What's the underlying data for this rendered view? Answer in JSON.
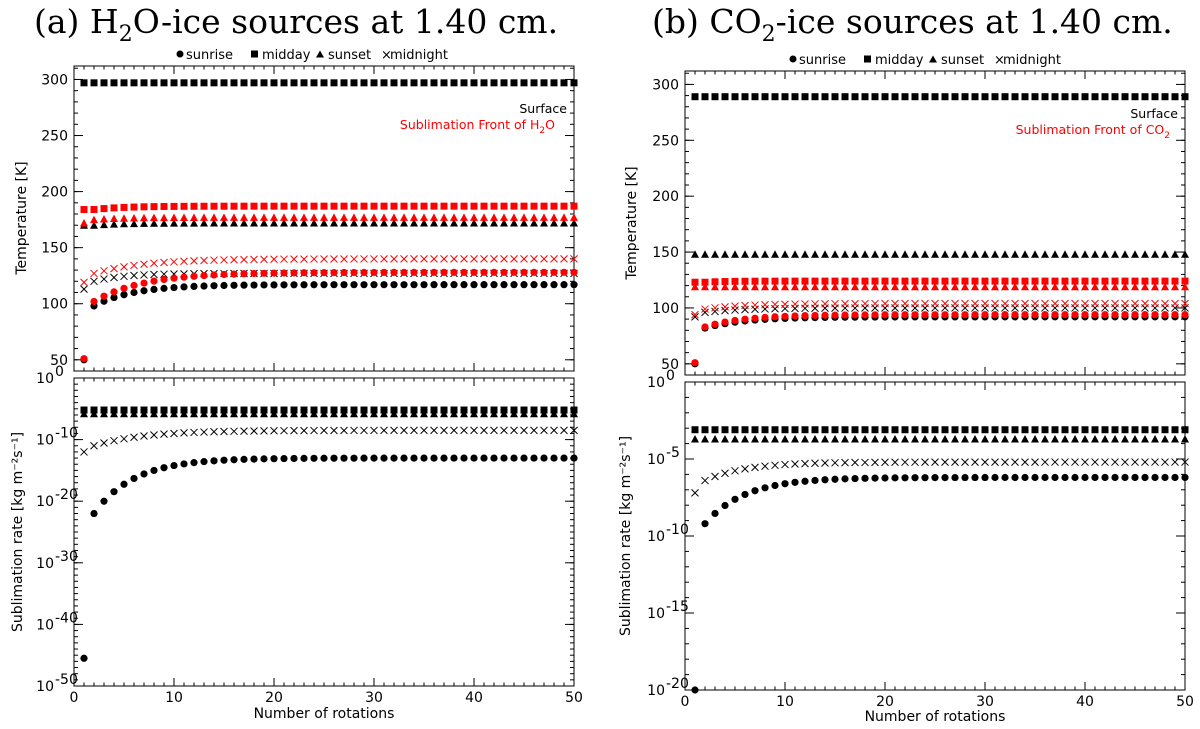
{
  "panels": [
    {
      "title_main": "(a) H",
      "title_sub": "2",
      "title_rest": "O-ice sources at 1.40 cm.",
      "legend": [
        "sunrise",
        "midday",
        "sunset",
        "midnight"
      ],
      "annotation_surface": "Surface",
      "annotation_front": "Sublimation Front of H",
      "annotation_front_sub": "2",
      "annotation_front_rest": "O",
      "temp_ylabel": "Temperature [K]",
      "rate_ylabel": "Sublimation rate [kg m⁻²s⁻¹]",
      "xlabel": "Number of rotations",
      "x_ticks": [
        0,
        10,
        20,
        30,
        40,
        50
      ],
      "temp_ticks": [
        50,
        100,
        150,
        200,
        250,
        300
      ],
      "rate_ticks": [
        {
          "v": 0,
          "base": "10",
          "exp": "0"
        },
        {
          "v": -10,
          "base": "10",
          "exp": "-10"
        },
        {
          "v": -20,
          "base": "10",
          "exp": "-20"
        },
        {
          "v": -30,
          "base": "10",
          "exp": "-30"
        },
        {
          "v": -40,
          "base": "10",
          "exp": "-40"
        },
        {
          "v": -50,
          "base": "10",
          "exp": "-50"
        }
      ]
    },
    {
      "title_main": "(b) CO",
      "title_sub": "2",
      "title_rest": "-ice sources at 1.40 cm.",
      "legend": [
        "sunrise",
        "midday",
        "sunset",
        "midnight"
      ],
      "annotation_surface": "Surface",
      "annotation_front": "Sublimation Front of CO",
      "annotation_front_sub": "2",
      "annotation_front_rest": "",
      "temp_ylabel": "Temperature [K]",
      "rate_ylabel": "Sublimation rate [kg m⁻²s⁻¹]",
      "xlabel": "Number of rotations",
      "x_ticks": [
        0,
        10,
        20,
        30,
        40,
        50
      ],
      "temp_ticks": [
        50,
        100,
        150,
        200,
        250,
        300
      ],
      "rate_ticks": [
        {
          "v": 0,
          "base": "10",
          "exp": "0"
        },
        {
          "v": -5,
          "base": "10",
          "exp": "-5"
        },
        {
          "v": -10,
          "base": "10",
          "exp": "-10"
        },
        {
          "v": -15,
          "base": "10",
          "exp": "-15"
        },
        {
          "v": -20,
          "base": "10",
          "exp": "-20"
        }
      ]
    }
  ],
  "colors": {
    "surface": "#000000",
    "front": "#ff0000"
  },
  "chart_data": [
    {
      "type": "scatter",
      "title": "(a) H2O-ice sources at 1.40 cm.",
      "subplot": "temperature",
      "xlabel": "",
      "ylabel": "Temperature [K]",
      "xlim": [
        0,
        50
      ],
      "ylim": [
        40,
        312
      ],
      "x": "rotations 1..50",
      "series": [
        {
          "name": "sunrise surface",
          "color": "#000000",
          "marker": "circle",
          "start": 50,
          "second": 98,
          "plateau": 117,
          "k": 4.0
        },
        {
          "name": "midday surface",
          "color": "#000000",
          "marker": "square",
          "start": 297,
          "second": 297,
          "plateau": 297,
          "k": 1
        },
        {
          "name": "sunset surface",
          "color": "#000000",
          "marker": "triangle",
          "start": 170,
          "second": 170,
          "plateau": 172,
          "k": 3
        },
        {
          "name": "midnight surface",
          "color": "#000000",
          "marker": "x",
          "start": 113,
          "second": 120,
          "plateau": 127,
          "k": 3
        },
        {
          "name": "sunrise front",
          "color": "#ff0000",
          "marker": "circle",
          "start": 51,
          "second": 102,
          "plateau": 128,
          "k": 5
        },
        {
          "name": "midday front",
          "color": "#ff0000",
          "marker": "square",
          "start": 184,
          "second": 184,
          "plateau": 187,
          "k": 3
        },
        {
          "name": "sunset front",
          "color": "#ff0000",
          "marker": "triangle",
          "start": 172,
          "second": 175,
          "plateau": 177,
          "k": 3
        },
        {
          "name": "midnight front",
          "color": "#ff0000",
          "marker": "x",
          "start": 119,
          "second": 127,
          "plateau": 140,
          "k": 5
        }
      ]
    },
    {
      "type": "scatter",
      "title": "(a) H2O-ice sources at 1.40 cm.",
      "subplot": "sublimation rate (log10)",
      "xlabel": "Number of rotations",
      "ylabel": "Sublimation rate [kg m-2 s-1]",
      "xlim": [
        0,
        50
      ],
      "ylim": [
        -50,
        0
      ],
      "series": [
        {
          "name": "sunrise",
          "color": "#000000",
          "marker": "circle",
          "start": -45.5,
          "second": -22,
          "plateau": -13,
          "k": 4
        },
        {
          "name": "midday",
          "color": "#000000",
          "marker": "square",
          "start": -5.2,
          "second": -5.2,
          "plateau": -5.2,
          "k": 1
        },
        {
          "name": "sunset",
          "color": "#000000",
          "marker": "triangle",
          "start": -5.8,
          "second": -5.8,
          "plateau": -5.8,
          "k": 1
        },
        {
          "name": "midnight",
          "color": "#000000",
          "marker": "x",
          "start": -12,
          "second": -11,
          "plateau": -8.5,
          "k": 5
        }
      ]
    },
    {
      "type": "scatter",
      "title": "(b) CO2-ice sources at 1.40 cm.",
      "subplot": "temperature",
      "xlabel": "",
      "ylabel": "Temperature [K]",
      "xlim": [
        0,
        50
      ],
      "ylim": [
        40,
        312
      ],
      "series": [
        {
          "name": "sunrise surface",
          "color": "#000000",
          "marker": "circle",
          "start": 50,
          "second": 82,
          "plateau": 92,
          "k": 4
        },
        {
          "name": "midday surface",
          "color": "#000000",
          "marker": "square",
          "start": 289,
          "second": 289,
          "plateau": 289,
          "k": 1
        },
        {
          "name": "sunset surface",
          "color": "#000000",
          "marker": "triangle",
          "start": 148,
          "second": 148,
          "plateau": 148,
          "k": 1
        },
        {
          "name": "midnight surface",
          "color": "#000000",
          "marker": "x",
          "start": 92,
          "second": 96,
          "plateau": 100,
          "k": 4
        },
        {
          "name": "sunrise front",
          "color": "#ff0000",
          "marker": "circle",
          "start": 51,
          "second": 83,
          "plateau": 94,
          "k": 4
        },
        {
          "name": "midday front",
          "color": "#ff0000",
          "marker": "square",
          "start": 123,
          "second": 123,
          "plateau": 124,
          "k": 2
        },
        {
          "name": "sunset front",
          "color": "#ff0000",
          "marker": "triangle",
          "start": 119,
          "second": 119,
          "plateau": 119,
          "k": 2
        },
        {
          "name": "midnight front",
          "color": "#ff0000",
          "marker": "x",
          "start": 94,
          "second": 99,
          "plateau": 104,
          "k": 4
        }
      ]
    },
    {
      "type": "scatter",
      "title": "(b) CO2-ice sources at 1.40 cm.",
      "subplot": "sublimation rate (log10)",
      "xlabel": "Number of rotations",
      "ylabel": "Sublimation rate [kg m-2 s-1]",
      "xlim": [
        0,
        50
      ],
      "ylim": [
        -20,
        0
      ],
      "series": [
        {
          "name": "sunrise",
          "color": "#000000",
          "marker": "circle",
          "start": -20,
          "second": -9.2,
          "plateau": -6.2,
          "k": 4
        },
        {
          "name": "midday",
          "color": "#000000",
          "marker": "square",
          "start": -3.1,
          "second": -3.1,
          "plateau": -3.1,
          "k": 1
        },
        {
          "name": "sunset",
          "color": "#000000",
          "marker": "triangle",
          "start": -3.7,
          "second": -3.7,
          "plateau": -3.7,
          "k": 1
        },
        {
          "name": "midnight",
          "color": "#000000",
          "marker": "x",
          "start": -7.2,
          "second": -6.4,
          "plateau": -5.2,
          "k": 4
        }
      ]
    }
  ]
}
